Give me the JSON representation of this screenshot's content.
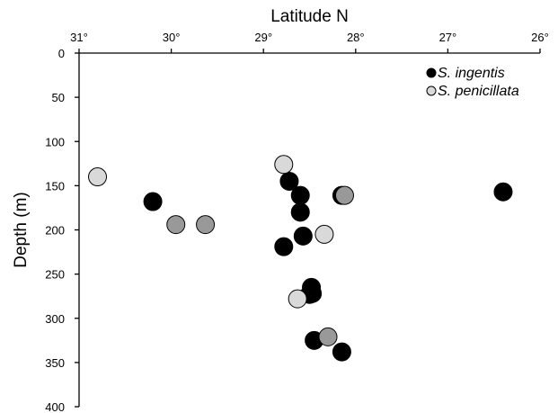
{
  "chart_data": {
    "type": "scatter",
    "title": "",
    "xlabel": "Latitude N",
    "ylabel": "Depth (m)",
    "x_axis_position": "top",
    "x_reversed": true,
    "y_reversed": true,
    "xlim": [
      31,
      26
    ],
    "ylim": [
      0,
      400
    ],
    "xticks": [
      31,
      30,
      29,
      28,
      27,
      26
    ],
    "xtick_labels": [
      "31°",
      "30°",
      "29°",
      "28°",
      "27°",
      "26°"
    ],
    "yticks": [
      0,
      50,
      100,
      150,
      200,
      250,
      300,
      350,
      400
    ],
    "ytick_labels": [
      "0",
      "50",
      "100",
      "150",
      "200",
      "250",
      "300",
      "350",
      "400"
    ],
    "grid": false,
    "legend_position": "top-right",
    "series": [
      {
        "name": "S. ingentis",
        "color": "#000000",
        "x": [
          30.2,
          28.72,
          28.6,
          28.6,
          28.57,
          28.78,
          28.48,
          28.5,
          28.45,
          28.15,
          26.4,
          28.47,
          28.15
        ],
        "y": [
          168,
          145,
          161,
          180,
          207,
          219,
          265,
          273,
          325,
          338,
          157,
          272,
          161
        ]
      },
      {
        "name": "S. penicillata",
        "color": "#d9d9d9",
        "x": [
          30.8,
          28.78,
          28.34,
          28.63
        ],
        "y": [
          140,
          126,
          205,
          278
        ]
      },
      {
        "name": "",
        "color": "#999999",
        "x": [
          29.95,
          29.63,
          28.12,
          28.3
        ],
        "y": [
          194,
          194,
          161,
          321
        ]
      }
    ]
  }
}
